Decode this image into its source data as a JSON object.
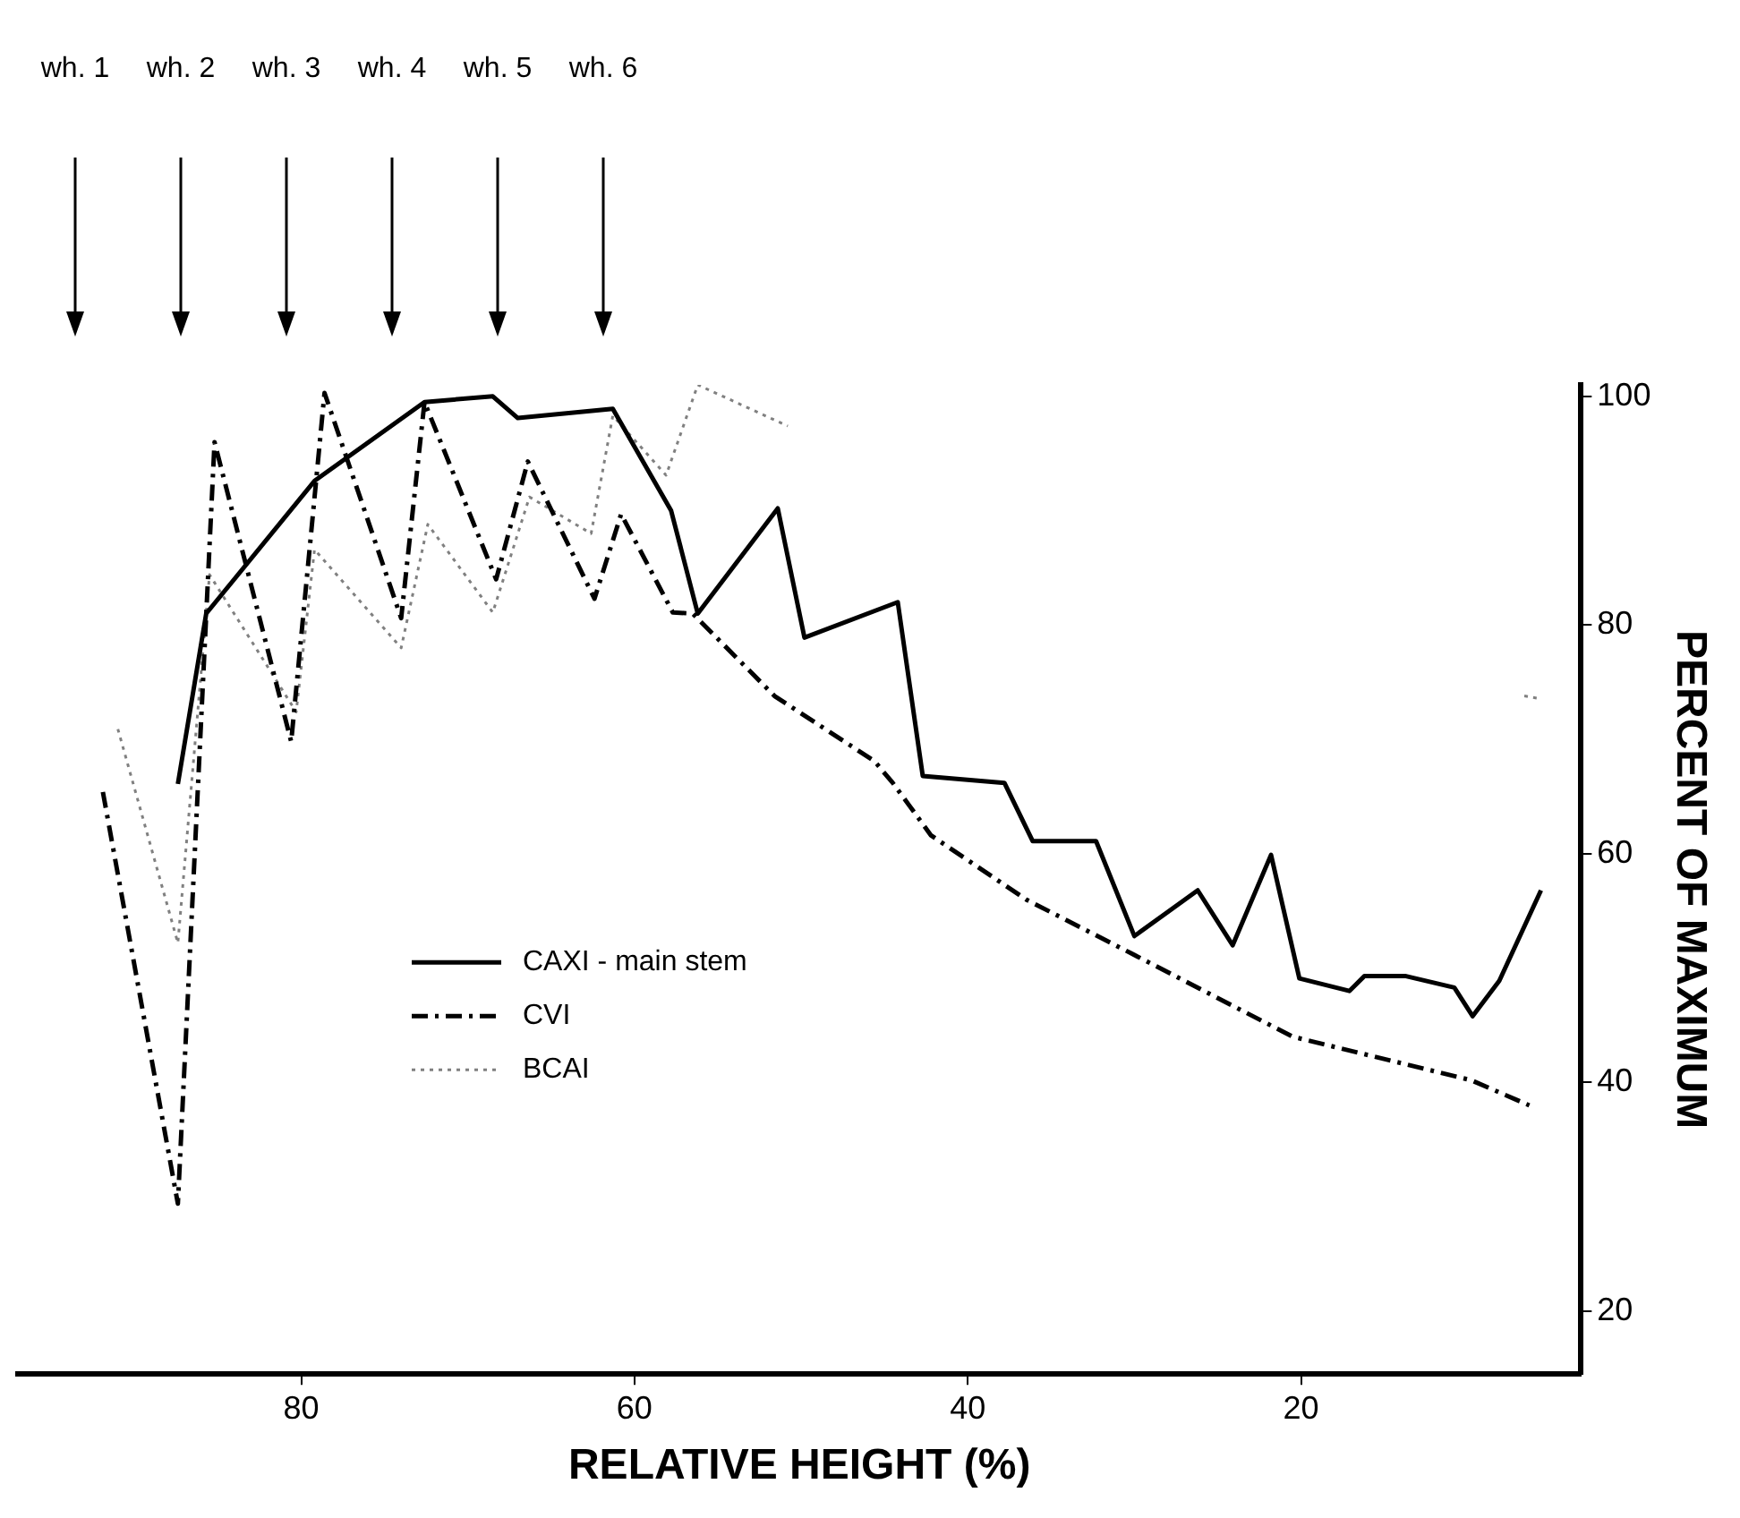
{
  "chart_data": {
    "type": "line",
    "xlabel": "RELATIVE HEIGHT (%)",
    "ylabel": "PERCENT OF MAXIMUM",
    "xlim": [
      97,
      3.2
    ],
    "xticks": [
      80,
      60,
      40,
      20
    ],
    "ylim": [
      14.5,
      101
    ],
    "yticks": [
      20,
      40,
      60,
      80,
      100
    ],
    "grid": false,
    "legend": "bottom left",
    "marker": "none",
    "series": [
      {
        "name": "CAXI - main stem",
        "color": "#000000",
        "line_style": "solid",
        "x": [
          87.4,
          85.7,
          79.2,
          72.6,
          68.5,
          67.0,
          61.3,
          57.8,
          56.2,
          51.4,
          49.8,
          44.2,
          42.7,
          37.8,
          36.1,
          32.3,
          30.0,
          26.2,
          24.1,
          21.8,
          20.1,
          17.1,
          16.2,
          13.7,
          10.8,
          9.7,
          8.1,
          5.6
        ],
        "values": [
          66.1,
          81.0,
          92.6,
          99.5,
          100,
          98.1,
          98.9,
          90.0,
          81.0,
          90.2,
          78.9,
          82.0,
          66.8,
          66.2,
          61.1,
          61.1,
          52.8,
          56.8,
          52.0,
          59.9,
          49.1,
          48.0,
          49.3,
          49.3,
          48.3,
          45.8,
          48.9,
          56.8
        ]
      },
      {
        "name": "CVI",
        "color": "#000000",
        "line_style": "dashed",
        "x": [
          91.9,
          87.4,
          85.2,
          80.6,
          78.6,
          74.0,
          72.6,
          68.3,
          66.4,
          62.4,
          60.8,
          57.7,
          56.5,
          51.6,
          45.6,
          44.5,
          42.2,
          36.5,
          30.2,
          20.5,
          9.8,
          6.3
        ],
        "values": [
          65.4,
          29.4,
          96.0,
          69.8,
          100.3,
          80.6,
          99.5,
          84.0,
          94.3,
          82.3,
          89.7,
          81.1,
          81.0,
          73.8,
          68.1,
          66.2,
          61.6,
          56.0,
          51.3,
          44.0,
          40.2,
          38.0
        ]
      },
      {
        "name": "BCAI",
        "color": "#808080",
        "line_style": "dotted",
        "x": [
          91.0,
          87.4,
          85.5,
          80.3,
          79.2,
          74.0,
          72.4,
          68.5,
          66.3,
          62.6,
          61.3,
          58.1,
          56.2,
          50.8,
          30,
          6.6,
          5.8
        ],
        "values": [
          70.9,
          52.2,
          84.4,
          72.4,
          86.6,
          78.0,
          88.8,
          81.1,
          91.2,
          88.0,
          98.3,
          93.1,
          101.0,
          97.4,
          null,
          73.8,
          73.6
        ]
      }
    ],
    "annotations": [
      "wh. 1",
      "wh. 2",
      "wh. 3",
      "wh. 4",
      "wh. 5",
      "wh. 6"
    ]
  }
}
